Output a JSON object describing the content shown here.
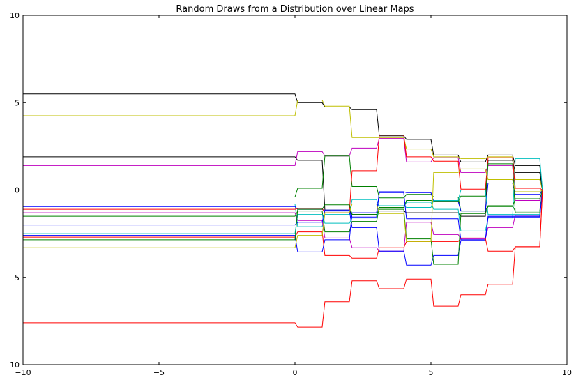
{
  "chart_data": {
    "type": "line",
    "title": "Random Draws from a Distribution over Linear Maps",
    "xlabel": "",
    "ylabel": "",
    "xlim": [
      -10,
      10
    ],
    "ylim": [
      -10,
      10
    ],
    "xticks": [
      -10,
      -5,
      0,
      5,
      10
    ],
    "yticks": [
      -10,
      -5,
      0,
      5,
      10
    ],
    "xtick_labels": [
      "−10",
      "−5",
      "0",
      "5",
      "10"
    ],
    "ytick_labels": [
      "−10",
      "−5",
      "0",
      "5",
      "10"
    ],
    "grid": false,
    "legend": "none",
    "x": [
      -10,
      0,
      0.1,
      1,
      1.1,
      2,
      2.1,
      3,
      3.1,
      4,
      4.1,
      5,
      5.1,
      6,
      6.1,
      7,
      7.1,
      8,
      8.1,
      9,
      9.1,
      10
    ],
    "series": [
      {
        "color": "#000000",
        "values": [
          5.5,
          5.5,
          5.0,
          5.0,
          4.75,
          4.75,
          4.6,
          4.6,
          3.1,
          3.1,
          2.9,
          2.9,
          2.0,
          2.0,
          1.6,
          1.6,
          2.0,
          2.0,
          1.4,
          1.4,
          0.0,
          0.0
        ]
      },
      {
        "color": "#bfbf00",
        "values": [
          4.25,
          4.25,
          5.15,
          5.15,
          4.8,
          4.8,
          3.0,
          3.0,
          3.0,
          3.0,
          2.35,
          2.35,
          1.9,
          1.9,
          1.8,
          1.8,
          1.9,
          1.9,
          0.6,
          0.6,
          0.0,
          0.0
        ]
      },
      {
        "color": "#000000",
        "values": [
          1.9,
          1.9,
          1.7,
          1.7,
          -1.15,
          -1.15,
          -1.4,
          -1.4,
          -1.2,
          -1.2,
          -1.3,
          -1.3,
          -1.3,
          -1.3,
          -1.5,
          -1.5,
          1.7,
          1.7,
          1.0,
          1.0,
          0.0,
          0.0
        ]
      },
      {
        "color": "#bf00bf",
        "values": [
          1.4,
          1.4,
          2.2,
          2.2,
          1.95,
          1.95,
          2.4,
          2.4,
          2.95,
          2.95,
          1.6,
          1.6,
          1.85,
          1.85,
          1.0,
          1.0,
          1.4,
          1.4,
          -0.6,
          -0.6,
          0.0,
          0.0
        ]
      },
      {
        "color": "#008000",
        "values": [
          -0.4,
          -0.4,
          0.1,
          0.1,
          1.95,
          1.95,
          0.2,
          0.2,
          -0.45,
          -0.45,
          -0.25,
          -0.25,
          -0.4,
          -0.4,
          -1.2,
          -1.2,
          -0.9,
          -0.9,
          -1.2,
          -1.2,
          0.0,
          0.0
        ]
      },
      {
        "color": "#00bfbf",
        "values": [
          -0.8,
          -0.8,
          -2.1,
          -2.1,
          -1.4,
          -1.4,
          -0.55,
          -0.55,
          -1.0,
          -1.0,
          -0.7,
          -0.7,
          -1.1,
          -1.1,
          -2.35,
          -2.35,
          -1.6,
          -1.6,
          1.8,
          1.8,
          0.0,
          0.0
        ]
      },
      {
        "color": "#0000ff",
        "values": [
          -0.95,
          -0.95,
          -1.1,
          -1.1,
          -1.2,
          -1.2,
          -1.55,
          -1.55,
          -0.1,
          -0.1,
          -0.15,
          -0.15,
          -0.65,
          -0.65,
          -1.2,
          -1.2,
          0.4,
          0.4,
          -0.25,
          -0.25,
          0.0,
          0.0
        ]
      },
      {
        "color": "#ff0000",
        "values": [
          -1.1,
          -1.1,
          -1.05,
          -1.05,
          -1.3,
          -1.3,
          1.1,
          1.1,
          3.15,
          3.15,
          1.9,
          1.9,
          1.65,
          1.65,
          0.05,
          0.05,
          1.85,
          1.85,
          0.1,
          0.1,
          0.0,
          0.0
        ]
      },
      {
        "color": "#bf00bf",
        "values": [
          -1.3,
          -1.3,
          -1.75,
          -1.75,
          -2.75,
          -2.75,
          -3.3,
          -3.3,
          -3.5,
          -3.5,
          -1.85,
          -1.85,
          -2.55,
          -2.55,
          -2.8,
          -2.8,
          -2.15,
          -2.15,
          -1.45,
          -1.45,
          0.0,
          0.0
        ]
      },
      {
        "color": "#008000",
        "values": [
          -1.5,
          -1.5,
          -1.2,
          -1.2,
          -2.4,
          -2.4,
          -1.8,
          -1.8,
          -1.0,
          -1.0,
          -0.6,
          -0.6,
          -0.65,
          -0.65,
          -0.35,
          -0.35,
          1.5,
          1.5,
          -1.3,
          -1.3,
          0.0,
          0.0
        ]
      },
      {
        "color": "#0000ff",
        "values": [
          -2.0,
          -2.0,
          -1.85,
          -1.85,
          -1.15,
          -1.15,
          -2.15,
          -2.15,
          -3.5,
          -3.5,
          -4.3,
          -4.3,
          -3.75,
          -3.75,
          -2.9,
          -2.9,
          -1.5,
          -1.5,
          -1.5,
          -1.5,
          0.0,
          0.0
        ]
      },
      {
        "color": "#00bfbf",
        "values": [
          -2.5,
          -2.5,
          -1.4,
          -1.4,
          -1.9,
          -1.9,
          -1.6,
          -1.6,
          -0.9,
          -0.9,
          -1.0,
          -1.0,
          -0.6,
          -0.6,
          0.0,
          0.0,
          -1.4,
          -1.4,
          -1.4,
          -1.4,
          0.0,
          0.0
        ]
      },
      {
        "color": "#0000ff",
        "values": [
          -2.6,
          -2.6,
          -3.55,
          -3.55,
          -2.85,
          -2.85,
          -1.3,
          -1.3,
          -0.15,
          -0.15,
          -1.65,
          -1.65,
          -1.65,
          -1.65,
          -2.85,
          -2.85,
          -1.55,
          -1.55,
          -1.55,
          -1.55,
          0.0,
          0.0
        ]
      },
      {
        "color": "#ff0000",
        "values": [
          -2.7,
          -2.7,
          -2.4,
          -2.4,
          -3.75,
          -3.75,
          -3.9,
          -3.9,
          -3.3,
          -3.3,
          -2.95,
          -2.95,
          -2.95,
          -2.95,
          -2.75,
          -2.75,
          -3.5,
          -3.5,
          -3.25,
          -3.25,
          0.0,
          0.0
        ]
      },
      {
        "color": "#008000",
        "values": [
          -2.85,
          -2.85,
          -1.1,
          -1.1,
          -0.85,
          -0.85,
          -1.4,
          -1.4,
          -1.1,
          -1.1,
          -2.8,
          -2.8,
          -4.25,
          -4.25,
          -1.35,
          -1.35,
          -0.95,
          -0.95,
          -0.5,
          -0.5,
          0.0,
          0.0
        ]
      },
      {
        "color": "#bfbf00",
        "values": [
          -3.3,
          -3.3,
          -2.6,
          -2.6,
          -1.3,
          -1.3,
          -0.8,
          -0.8,
          -1.35,
          -1.35,
          -2.95,
          -2.95,
          1.0,
          1.0,
          1.2,
          1.2,
          0.6,
          0.6,
          -0.1,
          -0.1,
          0.0,
          0.0
        ]
      },
      {
        "color": "#ff0000",
        "values": [
          -7.6,
          -7.6,
          -7.85,
          -7.85,
          -6.4,
          -6.4,
          -5.2,
          -5.2,
          -5.65,
          -5.65,
          -5.1,
          -5.1,
          -6.65,
          -6.65,
          -6.0,
          -6.0,
          -5.4,
          -5.4,
          -3.25,
          -3.25,
          0.0,
          0.0
        ]
      }
    ]
  }
}
